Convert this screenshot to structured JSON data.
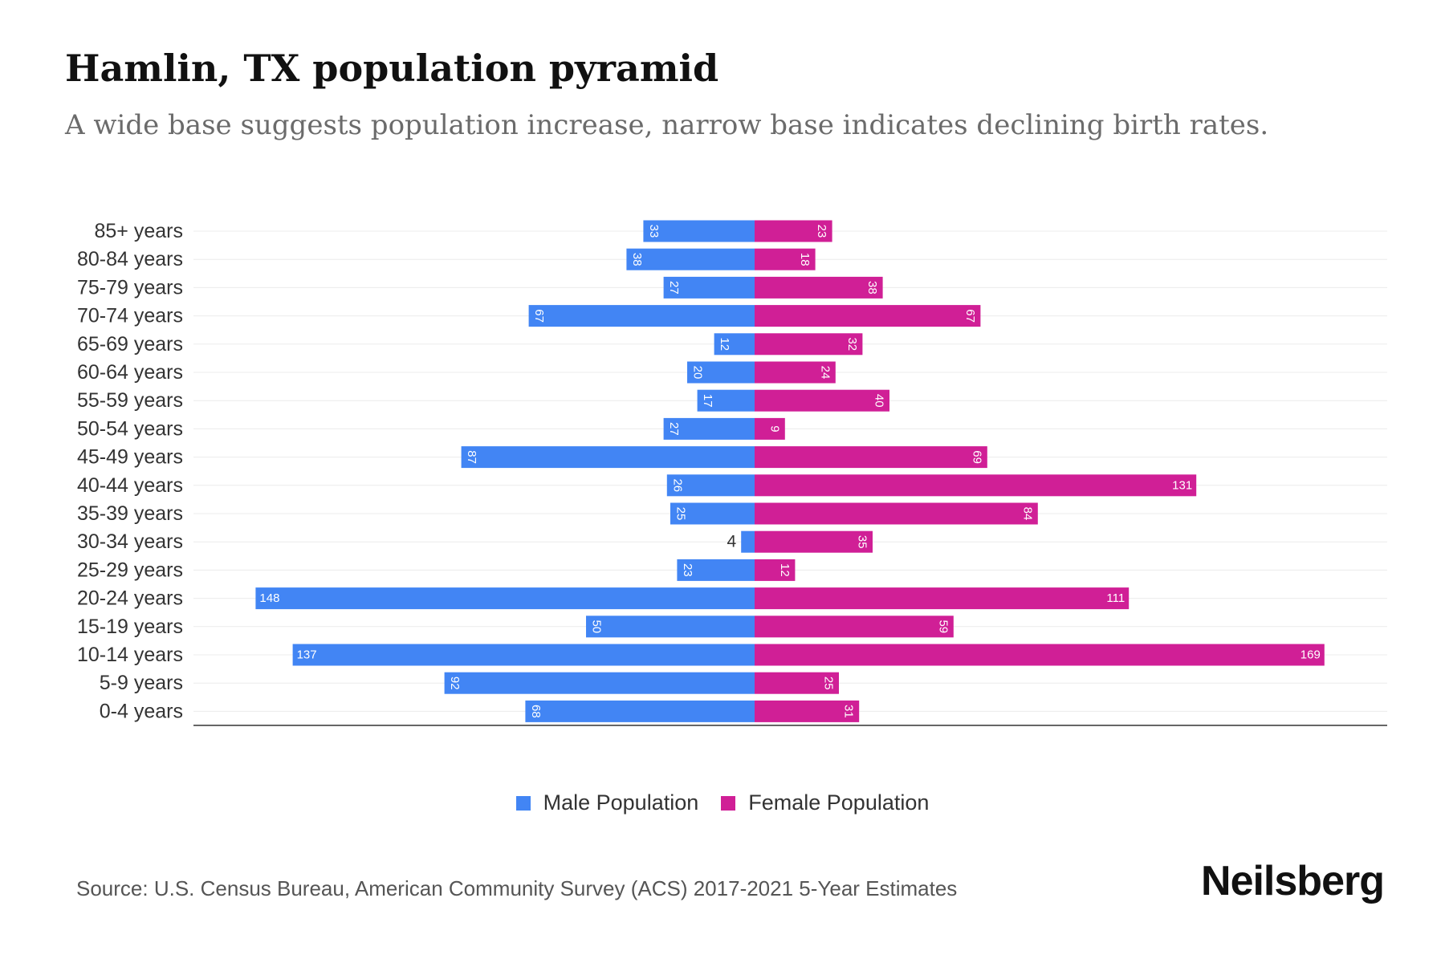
{
  "header": {
    "title": "Hamlin, TX population pyramid",
    "subtitle": "A wide base suggests population increase, narrow base indicates declining birth rates."
  },
  "legend": {
    "male_label": "Male Population",
    "female_label": "Female Population"
  },
  "colors": {
    "male": "#4285f4",
    "female": "#d01f96"
  },
  "footer": {
    "source": "Source: U.S. Census Bureau, American Community Survey (ACS) 2017-2021 5-Year Estimates",
    "brand": "Neilsberg"
  },
  "chart_data": {
    "type": "bar",
    "orientation": "horizontal-diverging",
    "title": "Hamlin, TX population pyramid",
    "subtitle": "A wide base suggests population increase, narrow base indicates declining birth rates.",
    "categories": [
      "85+ years",
      "80-84 years",
      "75-79 years",
      "70-74 years",
      "65-69 years",
      "60-64 years",
      "55-59 years",
      "50-54 years",
      "45-49 years",
      "40-44 years",
      "35-39 years",
      "30-34 years",
      "25-29 years",
      "20-24 years",
      "15-19 years",
      "10-14 years",
      "5-9 years",
      "0-4 years"
    ],
    "series": [
      {
        "name": "Male Population",
        "values": [
          33,
          38,
          27,
          67,
          12,
          20,
          17,
          27,
          87,
          26,
          25,
          4,
          23,
          148,
          50,
          137,
          92,
          68
        ]
      },
      {
        "name": "Female Population",
        "values": [
          23,
          18,
          38,
          67,
          32,
          24,
          40,
          9,
          69,
          131,
          84,
          35,
          12,
          111,
          59,
          169,
          25,
          31
        ]
      }
    ],
    "legend_position": "bottom",
    "grid": true
  }
}
